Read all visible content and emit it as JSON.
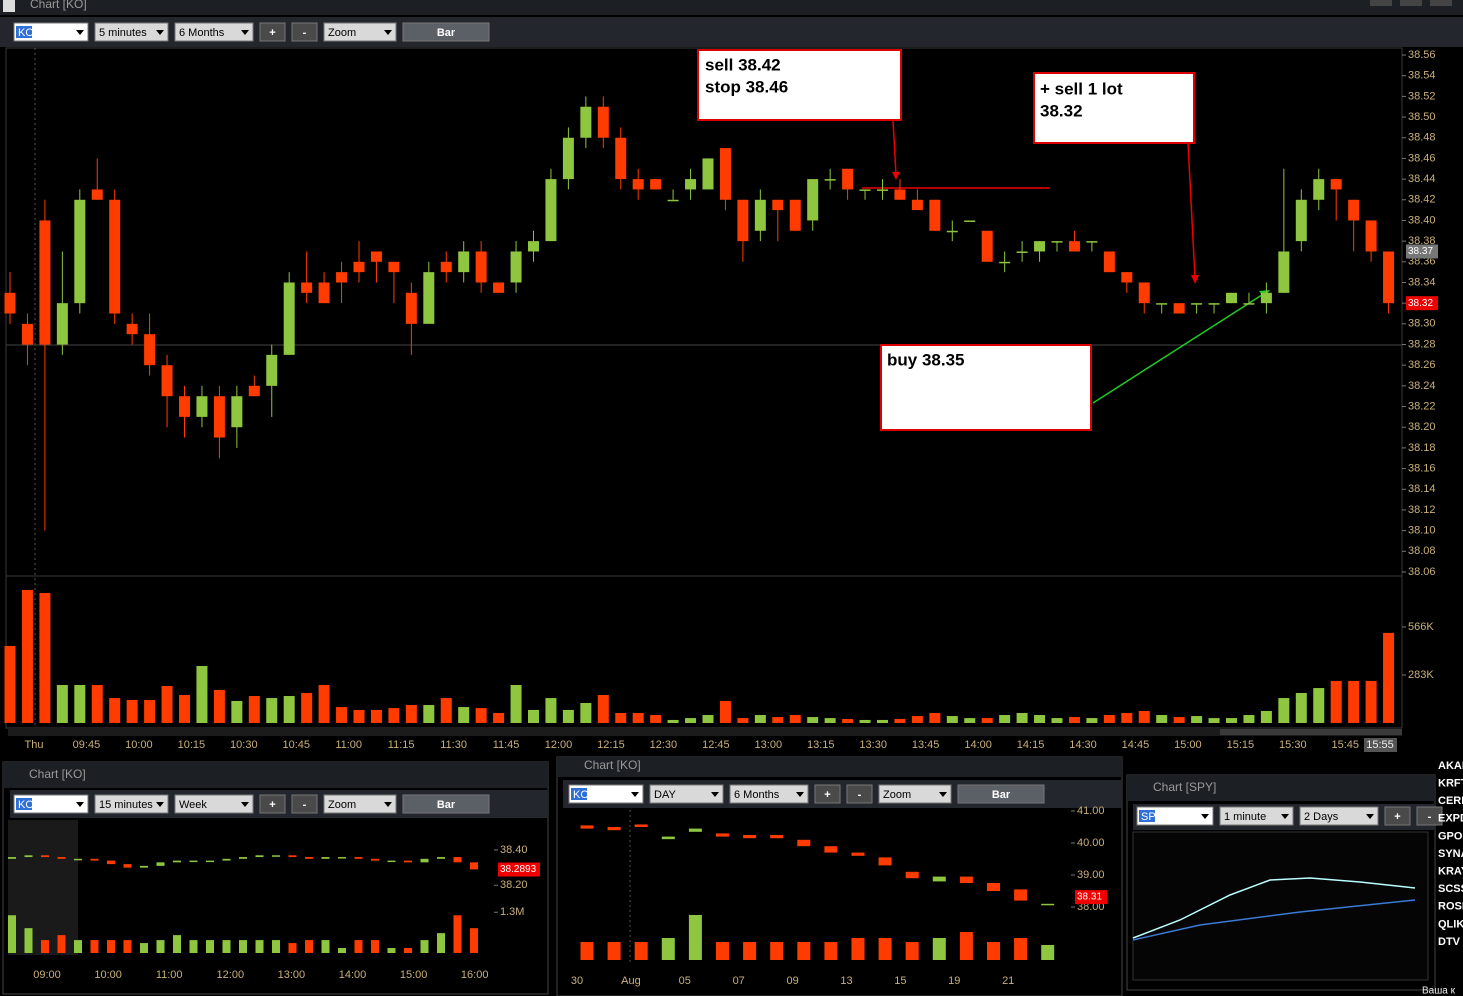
{
  "main_window": {
    "title": "Chart [KO]",
    "toolbar": [
      "KO",
      "5 minutes",
      "6 Months",
      "+",
      "-",
      "Zoom",
      "Bar"
    ],
    "chart": {
      "type": "candlestick",
      "up_color": "#8ec63f",
      "down_color": "#ff3b00",
      "open": [
        38.33,
        38.3,
        38.4,
        38.28,
        38.32,
        38.43,
        38.42,
        38.3,
        38.29,
        38.26,
        38.23,
        38.21,
        38.23,
        38.2,
        38.24,
        38.24,
        38.27,
        38.34,
        38.34,
        38.35,
        38.36,
        38.37,
        38.36,
        38.33,
        38.3,
        38.36,
        38.35,
        38.37,
        38.34,
        38.34,
        38.37,
        38.38,
        38.44,
        38.48,
        38.51,
        38.48,
        38.44,
        38.44,
        38.42,
        38.43,
        38.43,
        38.47,
        38.42,
        38.39,
        38.42,
        38.42,
        38.4,
        38.44,
        38.45,
        38.43,
        38.43,
        38.43,
        38.42,
        38.42,
        38.39,
        38.4,
        38.39,
        38.36,
        38.37,
        38.37,
        38.38,
        38.38,
        38.38,
        38.37,
        38.35,
        38.34,
        38.32,
        38.32,
        38.32,
        38.32,
        38.32,
        38.32,
        38.32,
        38.33,
        38.38,
        38.42,
        38.44,
        38.42,
        38.4,
        38.37
      ],
      "high": [
        38.35,
        38.31,
        38.42,
        38.37,
        38.43,
        38.46,
        38.43,
        38.31,
        38.31,
        38.27,
        38.24,
        38.24,
        38.24,
        38.24,
        38.25,
        38.28,
        38.35,
        38.37,
        38.35,
        38.36,
        38.38,
        38.37,
        38.36,
        38.34,
        38.36,
        38.37,
        38.38,
        38.38,
        38.34,
        38.38,
        38.39,
        38.45,
        38.49,
        38.52,
        38.52,
        38.49,
        38.45,
        38.44,
        38.43,
        38.45,
        38.46,
        38.47,
        38.42,
        38.43,
        38.42,
        38.42,
        38.44,
        38.45,
        38.45,
        38.43,
        38.44,
        38.44,
        38.43,
        38.42,
        38.4,
        38.4,
        38.39,
        38.37,
        38.38,
        38.38,
        38.38,
        38.39,
        38.38,
        38.37,
        38.35,
        38.34,
        38.32,
        38.32,
        38.32,
        38.32,
        38.33,
        38.33,
        38.34,
        38.45,
        38.43,
        38.45,
        38.44,
        38.42,
        38.4,
        38.37
      ],
      "low": [
        38.3,
        38.26,
        38.1,
        38.27,
        38.31,
        38.42,
        38.3,
        38.28,
        38.25,
        38.2,
        38.19,
        38.2,
        38.17,
        38.18,
        38.23,
        38.21,
        38.27,
        38.32,
        38.32,
        38.32,
        38.34,
        38.34,
        38.32,
        38.27,
        38.3,
        38.34,
        38.34,
        38.33,
        38.33,
        38.33,
        38.36,
        38.38,
        38.43,
        38.47,
        38.47,
        38.43,
        38.42,
        38.43,
        38.42,
        38.42,
        38.43,
        38.41,
        38.36,
        38.38,
        38.38,
        38.39,
        38.39,
        38.43,
        38.42,
        38.42,
        38.42,
        38.42,
        38.41,
        38.39,
        38.38,
        38.4,
        38.36,
        38.35,
        38.36,
        38.36,
        38.37,
        38.37,
        38.37,
        38.35,
        38.33,
        38.31,
        38.31,
        38.31,
        38.31,
        38.31,
        38.32,
        38.32,
        38.31,
        38.33,
        38.37,
        38.41,
        38.4,
        38.37,
        38.36,
        38.31
      ],
      "close": [
        38.31,
        38.28,
        38.28,
        38.32,
        38.42,
        38.42,
        38.31,
        38.29,
        38.26,
        38.23,
        38.21,
        38.23,
        38.19,
        38.23,
        38.23,
        38.27,
        38.34,
        38.33,
        38.32,
        38.34,
        38.35,
        38.36,
        38.35,
        38.3,
        38.35,
        38.35,
        38.37,
        38.34,
        38.33,
        38.37,
        38.38,
        38.44,
        38.48,
        38.51,
        38.48,
        38.44,
        38.43,
        38.43,
        38.42,
        38.44,
        38.46,
        38.42,
        38.38,
        38.42,
        38.41,
        38.39,
        38.44,
        38.44,
        38.43,
        38.43,
        38.43,
        38.42,
        38.41,
        38.39,
        38.39,
        38.4,
        38.36,
        38.36,
        38.37,
        38.38,
        38.38,
        38.37,
        38.38,
        38.35,
        38.34,
        38.32,
        38.32,
        38.31,
        38.32,
        38.32,
        38.33,
        38.32,
        38.33,
        38.37,
        38.42,
        38.44,
        38.43,
        38.4,
        38.37,
        38.32
      ],
      "volume": [
        454000,
        784000,
        766000,
        224000,
        224000,
        224000,
        147000,
        136000,
        136000,
        218000,
        165000,
        336000,
        195000,
        130000,
        159000,
        147000,
        159000,
        177000,
        224000,
        94000,
        77000,
        77000,
        88000,
        106000,
        106000,
        147000,
        94000,
        88000,
        59000,
        224000,
        77000,
        147000,
        77000,
        118000,
        165000,
        59000,
        59000,
        47000,
        18000,
        29000,
        47000,
        130000,
        29000,
        47000,
        35000,
        47000,
        35000,
        29000,
        24000,
        18000,
        18000,
        24000,
        41000,
        59000,
        41000,
        29000,
        29000,
        47000,
        59000,
        47000,
        29000,
        35000,
        29000,
        47000,
        59000,
        71000,
        47000,
        35000,
        41000,
        29000,
        29000,
        47000,
        71000,
        147000,
        177000,
        206000,
        248000,
        248000,
        248000,
        531000
      ],
      "ylim": [
        38.05,
        38.57
      ],
      "yticks": [
        38.56,
        38.54,
        38.52,
        {
          "value": 38.5,
          "label": "38.50"
        },
        38.48,
        38.46,
        38.44,
        38.42,
        {
          "value": 38.4,
          "label": "38.40"
        },
        38.38,
        38.36,
        38.34,
        38.32,
        {
          "value": 38.3,
          "label": "38.30"
        },
        38.28,
        38.26,
        38.24,
        38.22,
        {
          "value": 38.2,
          "label": "38.20"
        },
        38.18,
        38.16,
        38.14,
        38.12,
        {
          "value": 38.1,
          "label": "38.10"
        },
        38.08,
        38.06
      ],
      "vlim": [
        0,
        825000
      ],
      "vticks": [
        {
          "value": 566000,
          "label": "566K"
        },
        {
          "value": 283000,
          "label": "283K"
        }
      ],
      "x_labels": [
        "Thu",
        "09:45",
        "10:00",
        "10:15",
        "10:30",
        "10:45",
        "11:00",
        "11:15",
        "11:30",
        "11:45",
        "12:00",
        "12:15",
        "12:30",
        "12:45",
        "13:00",
        "13:15",
        "13:30",
        "13:45",
        "14:00",
        "14:15",
        "14:30",
        "14:45",
        "15:00",
        "15:15",
        "15:30",
        "15:45"
      ],
      "current_time": "15:55",
      "last_prices": [
        38.37,
        38.32
      ],
      "annotations": [
        {
          "lines": [
            "sell 38.42",
            "stop 38.46"
          ]
        },
        {
          "lines": [
            "+ sell 1 lot",
            "38.32"
          ]
        },
        {
          "lines": [
            "buy 38.35"
          ]
        }
      ]
    }
  },
  "window_15m": {
    "title": "Chart [KO]",
    "toolbar": [
      "KO",
      "15 minutes",
      "Week",
      "+",
      "-",
      "Zoom",
      "Bar"
    ],
    "chart": {
      "type": "candlestick",
      "up_color": "#8ec63f",
      "down_color": "#ff3b00",
      "open": [
        38.35,
        38.36,
        38.37,
        38.36,
        38.35,
        38.35,
        38.34,
        38.32,
        38.3,
        38.31,
        38.33,
        38.34,
        38.34,
        38.34,
        38.35,
        38.36,
        38.37,
        38.37,
        38.36,
        38.35,
        38.36,
        38.36,
        38.35,
        38.34,
        38.34,
        38.33,
        38.35,
        38.36,
        38.33
      ],
      "close": [
        38.36,
        38.37,
        38.36,
        38.35,
        38.35,
        38.34,
        38.32,
        38.3,
        38.31,
        38.33,
        38.34,
        38.34,
        38.34,
        38.35,
        38.36,
        38.37,
        38.37,
        38.36,
        38.35,
        38.36,
        38.36,
        38.35,
        38.34,
        38.34,
        38.33,
        38.35,
        38.36,
        38.33,
        38.29
      ],
      "volume": [
        1205000,
        793000,
        412000,
        571000,
        412000,
        412000,
        412000,
        412000,
        317000,
        412000,
        571000,
        412000,
        412000,
        412000,
        412000,
        412000,
        412000,
        317000,
        412000,
        412000,
        159000,
        412000,
        412000,
        159000,
        159000,
        412000,
        634000,
        1205000,
        793000
      ],
      "ylim": [
        38.06,
        38.57
      ],
      "yticks": [
        {
          "value": 38.4,
          "label": "38.40"
        },
        {
          "value": 38.2,
          "label": "38.20"
        }
      ],
      "vlim": [
        0,
        1500000
      ],
      "vticks": [
        {
          "value": 1300000,
          "label": "1.3M"
        }
      ],
      "x_labels": [
        "09:00",
        "10:00",
        "11:00",
        "12:00",
        "13:00",
        "14:00",
        "15:00",
        "16:00"
      ],
      "last_prices": [
        38.2893
      ]
    }
  },
  "window_day": {
    "title": "Chart [KO]",
    "toolbar": [
      "KO",
      "DAY",
      "6 Months",
      "+",
      "-",
      "Zoom",
      "Bar"
    ],
    "chart": {
      "type": "candlestick",
      "up_color": "#8ec63f",
      "down_color": "#ff3b00",
      "open": [
        40.55,
        40.5,
        40.58,
        40.12,
        40.35,
        40.3,
        40.25,
        40.25,
        40.1,
        39.9,
        39.7,
        39.55,
        39.1,
        38.8,
        38.95,
        38.75,
        38.55,
        38.1
      ],
      "close": [
        40.45,
        40.4,
        40.5,
        40.2,
        40.45,
        40.2,
        40.15,
        40.15,
        39.9,
        39.7,
        39.6,
        39.3,
        38.9,
        38.95,
        38.75,
        38.5,
        38.2,
        38.1
      ],
      "volume": [
        3600000,
        3600000,
        3600000,
        4400000,
        9000000,
        3600000,
        3600000,
        3600000,
        3600000,
        3600000,
        4400000,
        4400000,
        3600000,
        4400000,
        5600000,
        3600000,
        4400000,
        3000000
      ],
      "ylim": [
        37.9,
        41.1
      ],
      "yticks": [
        {
          "value": 41,
          "label": "41.00"
        },
        {
          "value": 40,
          "label": "40.00"
        },
        {
          "value": 39,
          "label": "39.00"
        },
        {
          "value": 38,
          "label": "38.00"
        }
      ],
      "vlim": [
        0,
        10000000
      ],
      "x_labels": [
        "30",
        "Aug",
        "05",
        "07",
        "09",
        "13",
        "15",
        "19",
        "21"
      ],
      "last_prices": [
        38.31
      ]
    }
  },
  "window_spy": {
    "title": "Chart [SPY]",
    "toolbar": [
      "SPY",
      "1 minute",
      "2 Days",
      "+",
      "-"
    ]
  },
  "watchlist": [
    "AKAI",
    "KRFT",
    "CERN",
    "EXPD",
    "GPOI",
    "SYNA",
    "KRAY",
    "SCSS",
    "ROSI",
    "QLIK",
    "DTV"
  ],
  "footer": "Ваша к"
}
